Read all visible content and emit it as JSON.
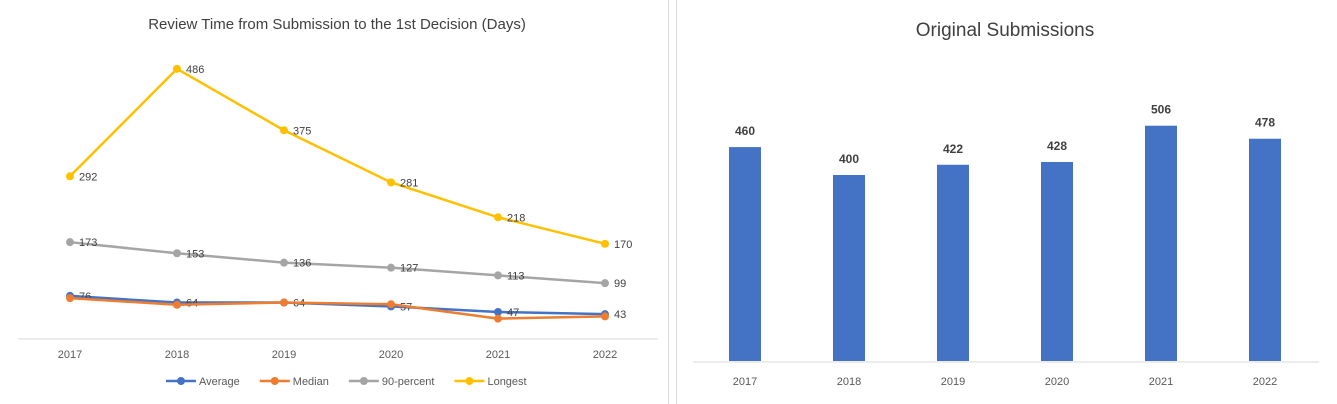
{
  "chart_data": [
    {
      "type": "line",
      "title": "Review Time from Submission to the 1st Decision (Days)",
      "categories": [
        "2017",
        "2018",
        "2019",
        "2020",
        "2021",
        "2022"
      ],
      "ylim": [
        0,
        520
      ],
      "grid": false,
      "legend_position": "bottom",
      "series": [
        {
          "name": "Average",
          "color": "#4472C4",
          "values": [
            76,
            64,
            64,
            57,
            47,
            43
          ],
          "labels": [
            "76",
            "64",
            "64",
            "57",
            "47",
            "43"
          ],
          "label_mask": [
            true,
            true,
            true,
            true,
            true,
            true
          ]
        },
        {
          "name": "Median",
          "color": "#ED7D31",
          "values": [
            72,
            60,
            64,
            61,
            35,
            39
          ],
          "labels": [],
          "label_mask": [
            false,
            false,
            false,
            false,
            false,
            false
          ]
        },
        {
          "name": "90-percent",
          "color": "#A5A5A5",
          "values": [
            173,
            153,
            136,
            127,
            113,
            99
          ],
          "labels": [
            "173",
            "153",
            "136",
            "127",
            "113",
            "99"
          ],
          "label_mask": [
            true,
            true,
            true,
            true,
            true,
            true
          ]
        },
        {
          "name": "Longest",
          "color": "#FFC000",
          "values": [
            292,
            486,
            375,
            281,
            218,
            170
          ],
          "labels": [
            "292",
            "486",
            "375",
            "281",
            "218",
            "170"
          ],
          "label_mask": [
            true,
            true,
            true,
            true,
            true,
            true
          ]
        }
      ]
    },
    {
      "type": "bar",
      "title": "Original Submissions",
      "categories": [
        "2017",
        "2018",
        "2019",
        "2020",
        "2021",
        "2022"
      ],
      "values": [
        460,
        400,
        422,
        428,
        506,
        478
      ],
      "labels": [
        "460",
        "400",
        "422",
        "428",
        "506",
        "478"
      ],
      "ylim": [
        0,
        600
      ],
      "grid": false,
      "color": "#4472C4"
    }
  ]
}
